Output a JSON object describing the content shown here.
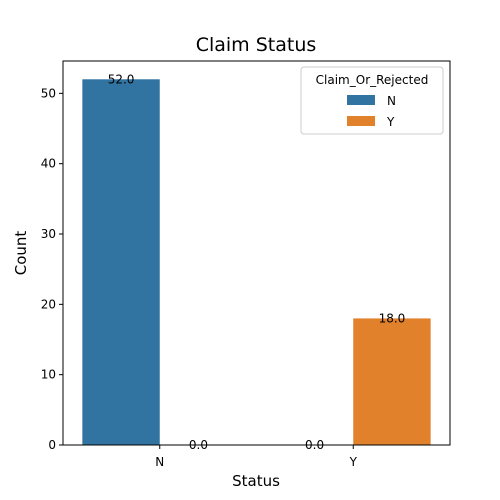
{
  "chart_data": {
    "type": "bar",
    "title": "Claim Status",
    "xlabel": "Status",
    "ylabel": "Count",
    "categories": [
      "N",
      "Y"
    ],
    "series": [
      {
        "name": "N",
        "color": "#3274a1",
        "values": [
          52,
          0
        ],
        "labels": [
          "52.0",
          "0.0"
        ]
      },
      {
        "name": "Y",
        "color": "#e1812c",
        "values": [
          0,
          18
        ],
        "labels": [
          "0.0",
          "18.0"
        ]
      }
    ],
    "ylim": [
      0,
      54.6
    ],
    "yticks": [
      0,
      10,
      20,
      30,
      40,
      50
    ],
    "legend": {
      "title": "Claim_Or_Rejected",
      "position": "top-right"
    },
    "grid": false
  }
}
